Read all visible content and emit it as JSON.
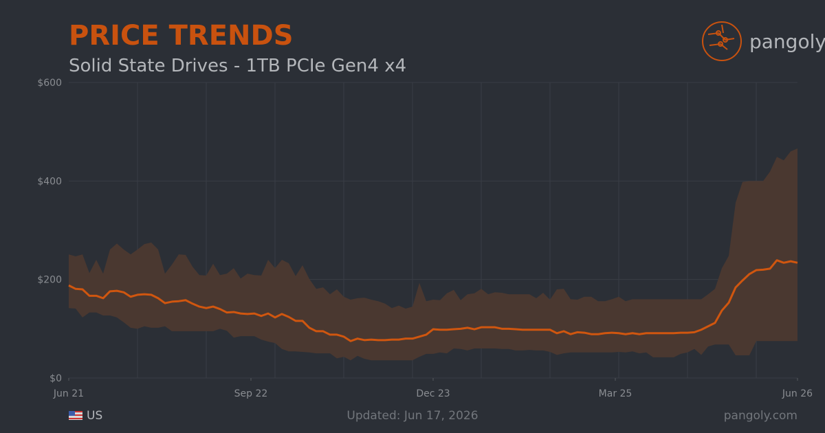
{
  "header": {
    "title": "PRICE TRENDS",
    "subtitle": "Solid State Drives - 1TB PCIe Gen4 x4",
    "brand": "pangoly"
  },
  "footer": {
    "region": "US",
    "updated": "Updated: Jun 17, 2026",
    "site": "pangoly.com"
  },
  "chart_data": {
    "type": "line",
    "ylim": [
      0,
      600
    ],
    "yticks": [
      {
        "value": 0,
        "label": "$0"
      },
      {
        "value": 200,
        "label": "$200"
      },
      {
        "value": 400,
        "label": "$400"
      },
      {
        "value": 600,
        "label": "$600"
      }
    ],
    "xlim": [
      0,
      106
    ],
    "xticks": [
      {
        "value": 0,
        "label": "Jun 21"
      },
      {
        "value": 26.5,
        "label": "Sep 22"
      },
      {
        "value": 53,
        "label": "Dec 23"
      },
      {
        "value": 79.5,
        "label": "Mar 25"
      },
      {
        "value": 106,
        "label": "Jun 26"
      }
    ],
    "xgrid": [
      10,
      20,
      30,
      40,
      50,
      60,
      70,
      80,
      90,
      100
    ],
    "grid": true,
    "color": "#d0560f",
    "band_color": "#4a3830",
    "values": [
      188,
      181,
      180,
      167,
      167,
      162,
      176,
      177,
      174,
      165,
      169,
      170,
      169,
      162,
      152,
      155,
      156,
      158,
      151,
      145,
      142,
      145,
      140,
      133,
      134,
      131,
      130,
      131,
      126,
      131,
      123,
      130,
      124,
      116,
      116,
      102,
      95,
      95,
      88,
      88,
      84,
      75,
      80,
      77,
      78,
      77,
      77,
      78,
      78,
      80,
      80,
      84,
      88,
      99,
      98,
      98,
      99,
      100,
      102,
      99,
      103,
      103,
      103,
      100,
      100,
      99,
      98,
      98,
      98,
      98,
      98,
      91,
      95,
      89,
      93,
      92,
      89,
      89,
      91,
      92,
      91,
      89,
      91,
      89,
      91,
      91,
      91,
      91,
      91,
      92,
      92,
      93,
      98,
      105,
      112,
      137,
      153,
      184,
      198,
      211,
      219,
      220,
      222,
      239,
      234,
      237,
      234
    ],
    "band_high": [
      251,
      247,
      251,
      213,
      240,
      212,
      261,
      273,
      261,
      251,
      261,
      272,
      275,
      261,
      212,
      230,
      251,
      250,
      226,
      209,
      208,
      232,
      209,
      212,
      223,
      202,
      212,
      209,
      208,
      240,
      223,
      240,
      233,
      207,
      229,
      201,
      181,
      184,
      170,
      180,
      165,
      159,
      162,
      163,
      159,
      156,
      151,
      142,
      147,
      141,
      145,
      193,
      156,
      159,
      158,
      172,
      179,
      158,
      170,
      172,
      181,
      170,
      174,
      173,
      170,
      170,
      170,
      170,
      162,
      173,
      159,
      180,
      181,
      160,
      159,
      165,
      165,
      156,
      156,
      160,
      165,
      156,
      160,
      160,
      160,
      160,
      160,
      160,
      160,
      160,
      160,
      160,
      160,
      170,
      181,
      223,
      248,
      356,
      398,
      400,
      400,
      400,
      419,
      449,
      442,
      460,
      466
    ],
    "band_low": [
      142,
      141,
      123,
      133,
      133,
      127,
      127,
      123,
      113,
      102,
      100,
      105,
      102,
      102,
      105,
      95,
      95,
      95,
      95,
      95,
      95,
      95,
      100,
      96,
      82,
      85,
      85,
      85,
      78,
      74,
      71,
      59,
      54,
      54,
      53,
      52,
      50,
      50,
      50,
      40,
      43,
      36,
      45,
      39,
      36,
      36,
      36,
      36,
      36,
      36,
      36,
      43,
      49,
      49,
      52,
      50,
      60,
      59,
      56,
      60,
      60,
      60,
      60,
      59,
      59,
      56,
      56,
      57,
      56,
      56,
      53,
      47,
      50,
      52,
      52,
      52,
      52,
      52,
      52,
      52,
      53,
      52,
      54,
      50,
      52,
      42,
      42,
      42,
      42,
      49,
      52,
      59,
      47,
      64,
      68,
      68,
      68,
      46,
      46,
      46,
      75,
      75,
      75,
      75,
      75,
      75,
      75
    ]
  }
}
